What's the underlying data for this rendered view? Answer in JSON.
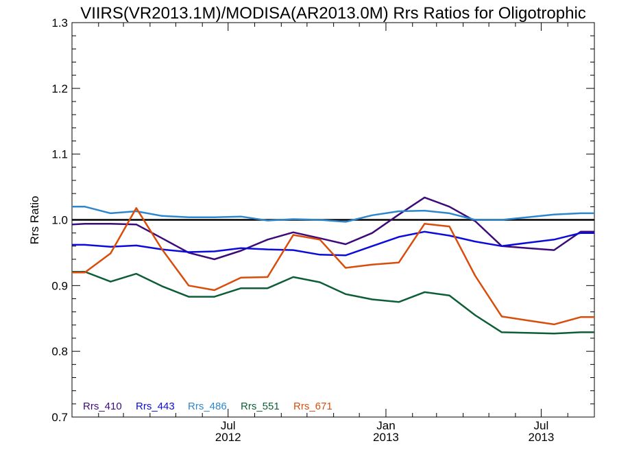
{
  "chart_data": {
    "type": "line",
    "title": "VIIRS(VR2013.1M)/MODISA(AR2013.0M)  Rrs Ratios for Oligotrophic",
    "xlabel": "",
    "ylabel": "Rrs Ratio",
    "ylim": [
      0.7,
      1.3
    ],
    "xlim": [
      "2012-01-01",
      "2013-09-01"
    ],
    "yticks": [
      0.7,
      0.8,
      0.9,
      1.0,
      1.1,
      1.2,
      1.3
    ],
    "ytick_labels": [
      "0.7",
      "0.8",
      "0.9",
      "1.0",
      "1.1",
      "1.2",
      "1.3"
    ],
    "xticks": [
      {
        "date": "2012-07-01",
        "line1": "Jul",
        "line2": "2012"
      },
      {
        "date": "2013-01-01",
        "line1": "Jan",
        "line2": "2013"
      },
      {
        "date": "2013-07-01",
        "line1": "Jul",
        "line2": "2013"
      }
    ],
    "reference_line": 1.0,
    "grid": false,
    "legend_position": "bottom-left",
    "x": [
      "2012-01-01",
      "2012-01-16",
      "2012-02-15",
      "2012-03-16",
      "2012-04-15",
      "2012-05-16",
      "2012-06-15",
      "2012-07-16",
      "2012-08-16",
      "2012-09-15",
      "2012-10-16",
      "2012-11-15",
      "2012-12-16",
      "2013-01-16",
      "2013-02-15",
      "2013-03-16",
      "2013-04-15",
      "2013-05-16",
      "2013-06-15",
      "2013-07-16",
      "2013-08-16",
      "2013-09-01"
    ],
    "series": [
      {
        "name": "Rrs_410",
        "color": "#3d0a78",
        "values": [
          0.993,
          0.994,
          0.994,
          0.993,
          0.972,
          0.95,
          0.94,
          0.953,
          0.97,
          0.981,
          0.972,
          0.963,
          0.98,
          1.008,
          1.034,
          1.02,
          0.998,
          0.96,
          0.957,
          0.954,
          0.982,
          0.982
        ]
      },
      {
        "name": "Rrs_443",
        "color": "#0b0bdc",
        "values": [
          0.962,
          0.962,
          0.959,
          0.961,
          0.955,
          0.951,
          0.952,
          0.957,
          0.955,
          0.954,
          0.947,
          0.946,
          0.96,
          0.974,
          0.982,
          0.976,
          0.967,
          0.96,
          0.965,
          0.97,
          0.98,
          0.98
        ]
      },
      {
        "name": "Rrs_486",
        "color": "#2d86cc",
        "values": [
          1.02,
          1.02,
          1.01,
          1.013,
          1.006,
          1.004,
          1.004,
          1.005,
          0.999,
          1.001,
          1.0,
          0.997,
          1.007,
          1.013,
          1.014,
          1.01,
          1.0,
          1.0,
          1.004,
          1.008,
          1.01,
          1.01
        ]
      },
      {
        "name": "Rrs_551",
        "color": "#0d5d36",
        "values": [
          0.921,
          0.921,
          0.906,
          0.918,
          0.899,
          0.883,
          0.883,
          0.896,
          0.896,
          0.913,
          0.905,
          0.887,
          0.879,
          0.875,
          0.89,
          0.885,
          0.855,
          0.829,
          0.828,
          0.827,
          0.829,
          0.829
        ]
      },
      {
        "name": "Rrs_671",
        "color": "#d94c0a",
        "values": [
          0.92,
          0.92,
          0.949,
          1.018,
          0.955,
          0.9,
          0.893,
          0.912,
          0.913,
          0.977,
          0.97,
          0.927,
          0.932,
          0.935,
          0.994,
          0.99,
          0.915,
          0.853,
          0.847,
          0.841,
          0.852,
          0.852
        ]
      }
    ]
  }
}
